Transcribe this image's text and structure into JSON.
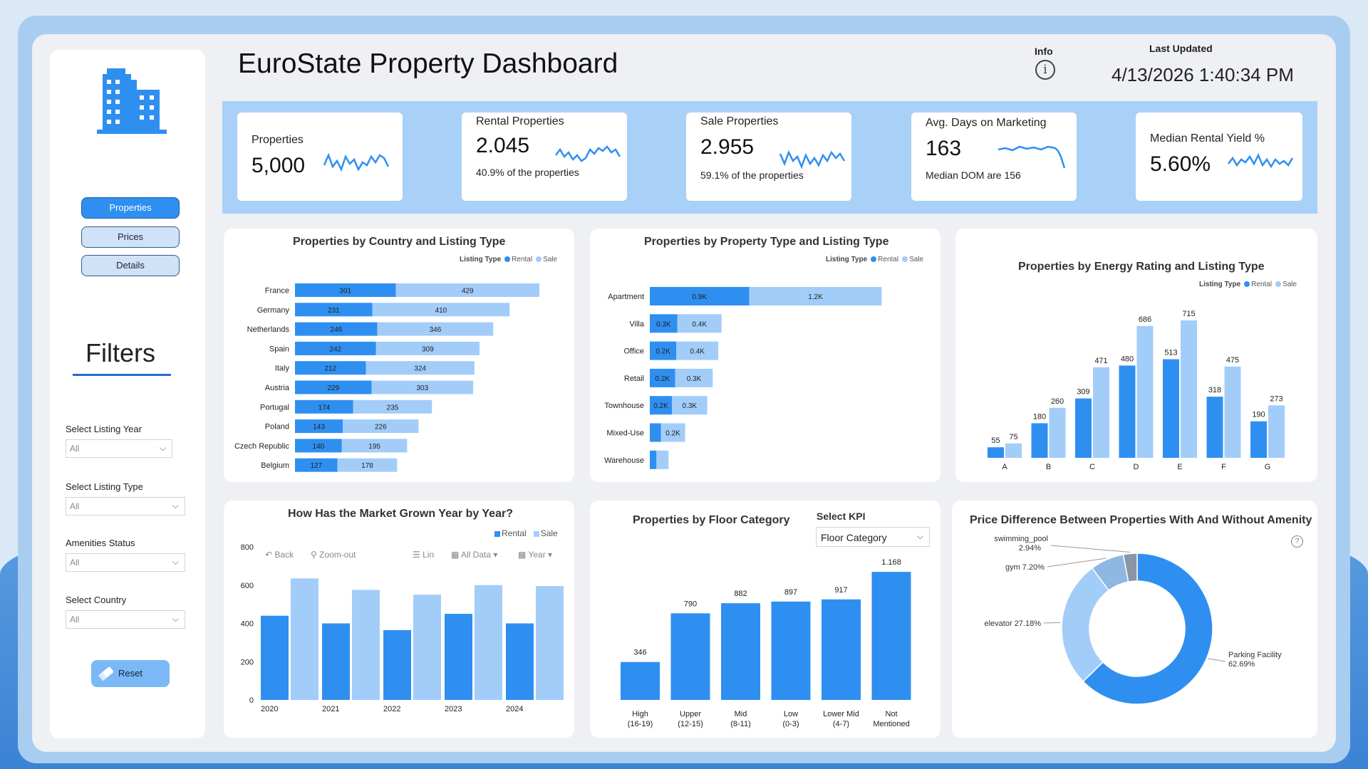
{
  "header": {
    "title": "EuroState Property Dashboard",
    "info_label": "Info",
    "last_updated_label": "Last Updated",
    "last_updated_value": "4/13/2026 1:40:34 PM"
  },
  "nav": {
    "items": [
      "Properties",
      "Prices",
      "Details"
    ],
    "active": "Properties"
  },
  "filters": {
    "title": "Filters",
    "fields": [
      {
        "label": "Select Listing Year",
        "value": "All"
      },
      {
        "label": "Select Listing Type",
        "value": "All"
      },
      {
        "label": "Amenities Status",
        "value": "All"
      },
      {
        "label": "Select Country",
        "value": "All"
      }
    ],
    "reset_label": "Reset"
  },
  "kpis": [
    {
      "title": "Properties",
      "value": "5,000",
      "sub": ""
    },
    {
      "title": "Rental Properties",
      "value": "2.045",
      "sub": "40.9% of the properties"
    },
    {
      "title": "Sale Properties",
      "value": "2.955",
      "sub": "59.1% of the properties"
    },
    {
      "title": "Avg. Days on Marketing",
      "value": "163",
      "sub": "Median DOM are 156"
    },
    {
      "title": "Median Rental Yield %",
      "value": "5.60%",
      "sub": ""
    }
  ],
  "colors": {
    "rental": "#2f8ff0",
    "sale": "#a3cdf9",
    "accent": "#1e6fd0"
  },
  "legend": {
    "title": "Listing Type",
    "rental": "Rental",
    "sale": "Sale"
  },
  "market": {
    "toolbar": {
      "back": "Back",
      "zoom": "Zoom-out",
      "lin": "Lin",
      "all_data": "All Data",
      "year": "Year"
    }
  },
  "floor": {
    "select_label": "Select KPI",
    "select_value": "Floor Category"
  },
  "chart_data": [
    {
      "type": "bar",
      "orientation": "horizontal",
      "stacked": true,
      "title": "Properties by Country and Listing Type",
      "categories": [
        "France",
        "Germany",
        "Netherlands",
        "Spain",
        "Italy",
        "Austria",
        "Portugal",
        "Poland",
        "Czech Republic",
        "Belgium"
      ],
      "series": [
        {
          "name": "Rental",
          "values": [
            301,
            231,
            246,
            242,
            212,
            229,
            174,
            143,
            140,
            127
          ]
        },
        {
          "name": "Sale",
          "values": [
            429,
            410,
            346,
            309,
            324,
            303,
            235,
            226,
            195,
            178
          ]
        }
      ],
      "labels": {
        "Rental": [
          "301",
          "231",
          "246",
          "242",
          "212",
          "229",
          "174",
          "143",
          "140",
          "127"
        ],
        "Sale": [
          "429",
          "410",
          "346",
          "309",
          "324",
          "303",
          "235",
          "226",
          "195",
          "178"
        ]
      },
      "legend_position": "top-right"
    },
    {
      "type": "bar",
      "orientation": "horizontal",
      "stacked": true,
      "title": "Properties by Property Type and Listing Type",
      "categories": [
        "Apartment",
        "Villa",
        "Office",
        "Retail",
        "Townhouse",
        "Mixed-Use",
        "Warehouse"
      ],
      "series": [
        {
          "name": "Rental",
          "values": [
            900,
            250,
            240,
            230,
            200,
            100,
            60
          ]
        },
        {
          "name": "Sale",
          "values": [
            1200,
            400,
            380,
            340,
            320,
            220,
            110
          ]
        }
      ],
      "labels": {
        "Rental": [
          "0.9K",
          "0.3K",
          "0.2K",
          "0.2K",
          "0.2K",
          "",
          ""
        ],
        "Sale": [
          "1.2K",
          "0.4K",
          "0.4K",
          "0.3K",
          "0.3K",
          "0.2K",
          ""
        ]
      },
      "legend_position": "top-right"
    },
    {
      "type": "bar",
      "orientation": "vertical",
      "title": "Properties by Energy Rating and Listing Type",
      "categories": [
        "A",
        "B",
        "C",
        "D",
        "E",
        "F",
        "G"
      ],
      "series": [
        {
          "name": "Rental",
          "values": [
            55,
            180,
            309,
            480,
            513,
            318,
            190
          ]
        },
        {
          "name": "Sale",
          "values": [
            75,
            260,
            471,
            686,
            715,
            475,
            273
          ]
        }
      ],
      "legend_position": "top-right"
    },
    {
      "type": "bar",
      "orientation": "vertical",
      "title": "How Has the Market Grown Year by Year?",
      "categories": [
        "2020",
        "2021",
        "2022",
        "2023",
        "2024"
      ],
      "series": [
        {
          "name": "Rental",
          "values": [
            440,
            400,
            365,
            450,
            400
          ]
        },
        {
          "name": "Sale",
          "values": [
            635,
            575,
            550,
            600,
            595
          ]
        }
      ],
      "y_ticks": [
        0,
        200,
        400,
        600,
        800
      ],
      "ylim": [
        0,
        800
      ],
      "legend_position": "top-right"
    },
    {
      "type": "bar",
      "orientation": "vertical",
      "title": "Properties by Floor Category",
      "categories": [
        "High (16-19)",
        "Upper (12-15)",
        "Mid (8-11)",
        "Low (0-3)",
        "Lower Mid (4-7)",
        "Not Mentioned"
      ],
      "values": [
        346,
        790,
        882,
        897,
        917,
        1168
      ],
      "labels": [
        "346",
        "790",
        "882",
        "897",
        "917",
        "1.168"
      ]
    },
    {
      "type": "pie",
      "donut": true,
      "title": "Price Difference Between Properties With And Without Amenity",
      "slices": [
        {
          "name": "Parking Facility",
          "value": 62.69,
          "label": "62.69%",
          "color": "#2f8ff0"
        },
        {
          "name": "elevator",
          "value": 27.18,
          "label": "27.18%",
          "color": "#a3cdf9"
        },
        {
          "name": "gym",
          "value": 7.2,
          "label": "7.20%",
          "color": "#8fb7e3"
        },
        {
          "name": "swimming_pool",
          "value": 2.94,
          "label": "2.94%",
          "color": "#8a95a5"
        }
      ]
    }
  ]
}
